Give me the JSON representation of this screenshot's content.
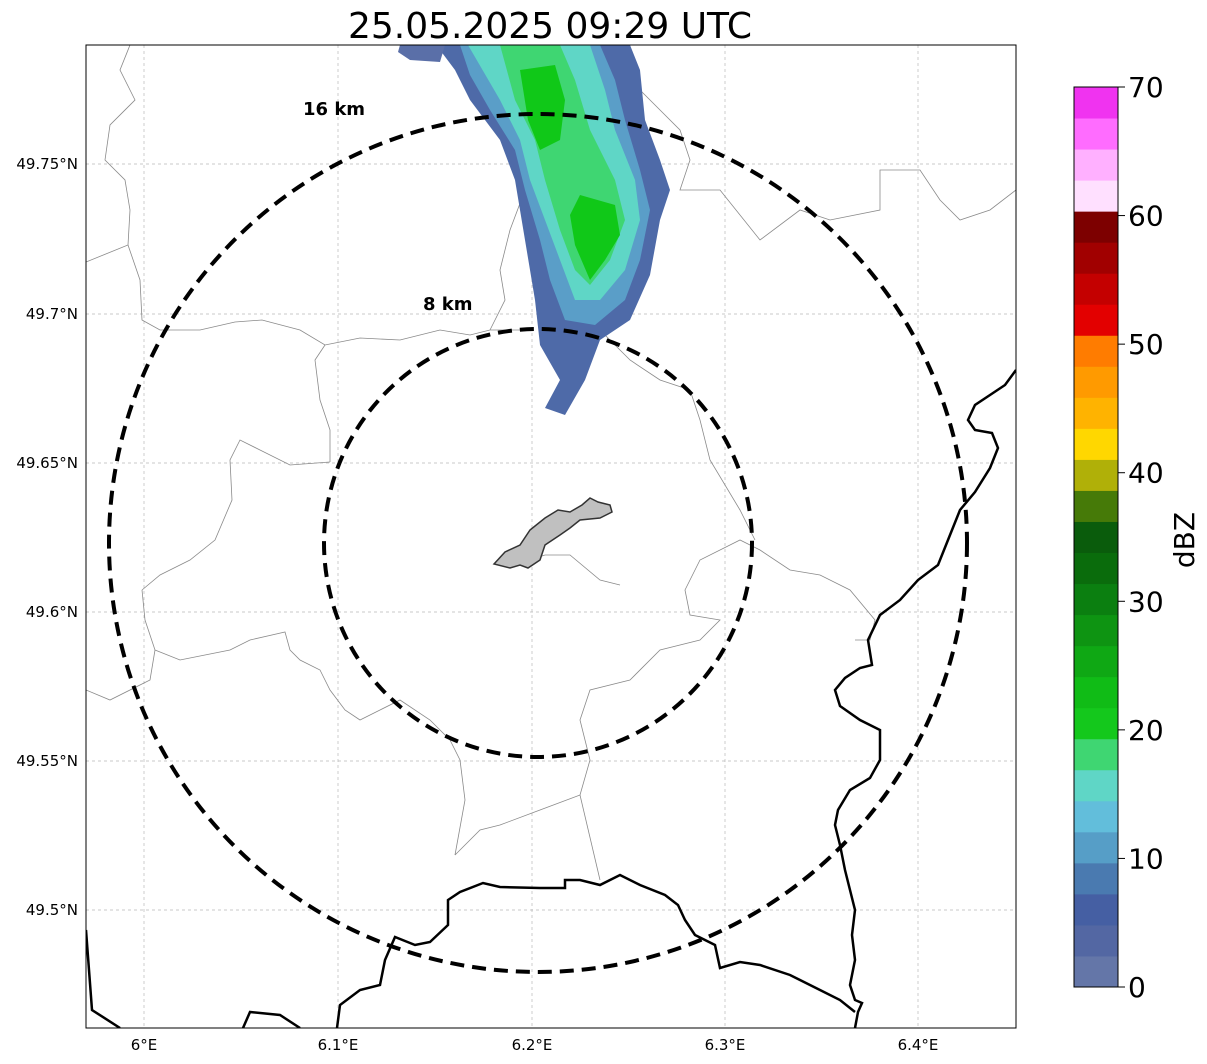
{
  "title": "25.05.2025 09:29 UTC",
  "map": {
    "lon_ticks": [
      "6°E",
      "6.1°E",
      "6.2°E",
      "6.3°E",
      "6.4°E"
    ],
    "lat_ticks": [
      "49.75°N",
      "49.7°N",
      "49.65°N",
      "49.6°N",
      "49.55°N",
      "49.5°N"
    ],
    "gridlines": true,
    "range_rings": [
      {
        "label": "16 km",
        "style": "dashed"
      },
      {
        "label": "8 km",
        "style": "dashed"
      }
    ],
    "features": [
      "country-border",
      "municipal-boundaries",
      "radar-site-area",
      "reflectivity-echoes"
    ]
  },
  "colorbar": {
    "label": "dBZ",
    "ticks": [
      "0",
      "10",
      "20",
      "30",
      "40",
      "50",
      "60",
      "70"
    ],
    "min": 0,
    "max": 70,
    "colors": [
      "#6476a8",
      "#5367a3",
      "#455fa3",
      "#4a7ab0",
      "#569ec7",
      "#62bedb",
      "#5fd6c6",
      "#3fd672",
      "#14c81c",
      "#10bc16",
      "#0fa814",
      "#0e9412",
      "#0b7f10",
      "#0a6c0c",
      "#0a5c0c",
      "#467a08",
      "#b0b008",
      "#ffd700",
      "#ffb300",
      "#ff9a00",
      "#ff7c00",
      "#e30000",
      "#c40000",
      "#a10000",
      "#7d0000",
      "#ffe0ff",
      "#ffb0ff",
      "#ff6cff",
      "#f033f0"
    ]
  }
}
